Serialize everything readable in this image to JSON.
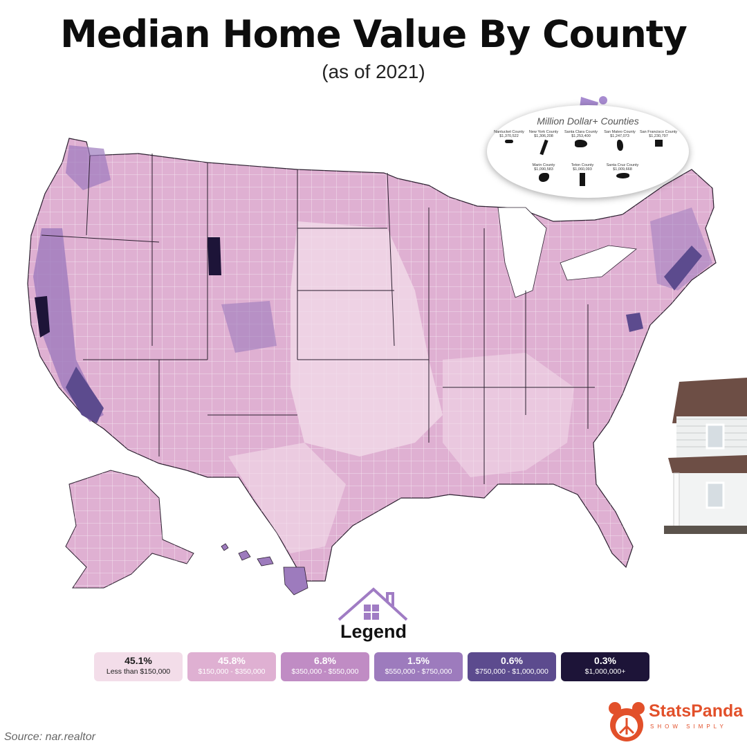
{
  "title": "Median Home Value By County",
  "subtitle": "(as of 2021)",
  "million_dollar": {
    "heading": "Million Dollar+ Counties",
    "counties": [
      {
        "name": "Nantucket County",
        "value": "$1,370,522"
      },
      {
        "name": "New York County",
        "value": "$1,306,208"
      },
      {
        "name": "Santa Clara County",
        "value": "$1,253,400"
      },
      {
        "name": "San Mateo County",
        "value": "$1,247,073"
      },
      {
        "name": "San Francisco County",
        "value": "$1,230,797"
      },
      {
        "name": "Marin County",
        "value": "$1,090,583"
      },
      {
        "name": "Teton County",
        "value": "$1,060,093"
      },
      {
        "name": "Santa Cruz County",
        "value": "$1,009,668"
      }
    ]
  },
  "legend": {
    "title": "Legend",
    "items": [
      {
        "pct": "45.1%",
        "range": "Less than $150,000",
        "color": "#f3dde9",
        "text": "#1a1a1a"
      },
      {
        "pct": "45.8%",
        "range": "$150,000 - $350,000",
        "color": "#dfb0d2",
        "text": "#ffffff"
      },
      {
        "pct": "6.8%",
        "range": "$350,000 - $550,000",
        "color": "#c08cc4",
        "text": "#ffffff"
      },
      {
        "pct": "1.5%",
        "range": "$550,000 - $750,000",
        "color": "#9d7bbd",
        "text": "#ffffff"
      },
      {
        "pct": "0.6%",
        "range": "$750,000 - $1,000,000",
        "color": "#5c4b8e",
        "text": "#ffffff"
      },
      {
        "pct": "0.3%",
        "range": "$1,000,000+",
        "color": "#1d1438",
        "text": "#ffffff"
      }
    ]
  },
  "source": "Source: nar.realtor",
  "brand": {
    "name": "StatsPanda",
    "tagline": "SHOW SIMPLY"
  },
  "colors": {
    "low": "#f3dde9",
    "mid": "#dfb0d2",
    "upper": "#c08cc4",
    "high": "#9d7bbd",
    "very_high": "#5c4b8e",
    "top": "#1d1438",
    "border": "#2b1f2f",
    "brand": "#e2502a"
  }
}
